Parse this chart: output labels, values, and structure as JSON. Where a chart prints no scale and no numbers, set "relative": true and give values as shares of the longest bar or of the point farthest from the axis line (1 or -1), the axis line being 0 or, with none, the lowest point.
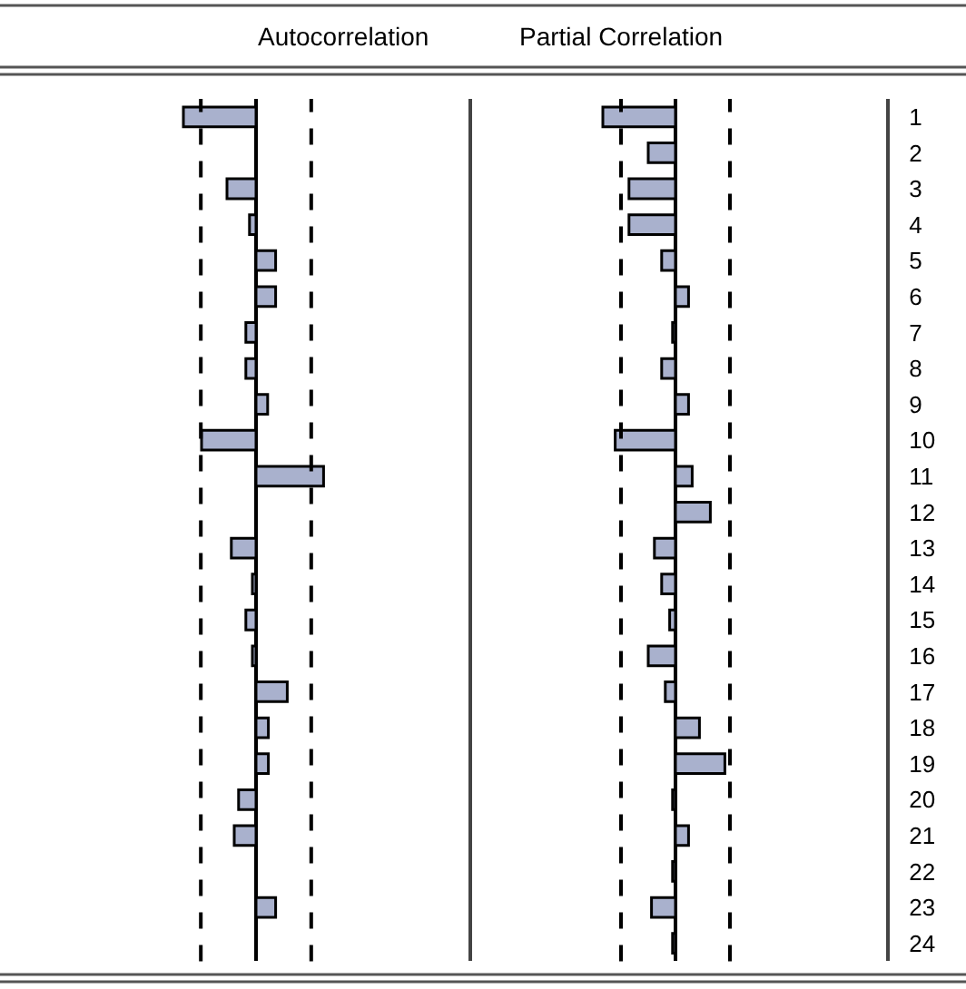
{
  "chart_data": [
    {
      "type": "bar",
      "orientation": "horizontal",
      "relative": true,
      "title": "Autocorrelation",
      "tick_labels": false,
      "color": "#a9b1cd",
      "categories": [
        "1",
        "2",
        "3",
        "4",
        "5",
        "6",
        "7",
        "8",
        "9",
        "10",
        "11",
        "12",
        "13",
        "14",
        "15",
        "16",
        "17",
        "18",
        "19",
        "20",
        "21",
        "22",
        "23",
        "24"
      ],
      "values": [
        -1.0,
        0,
        -0.4,
        -0.09,
        0.27,
        0.27,
        -0.14,
        -0.14,
        0.16,
        -0.75,
        0.93,
        0,
        -0.34,
        -0.05,
        -0.14,
        -0.05,
        0.43,
        0.17,
        0.17,
        -0.24,
        -0.3,
        0,
        0.27,
        0
      ],
      "ref_lines": [
        {
          "axis": "x",
          "value": -0.76,
          "line_style": "dashed",
          "color": "#000000"
        },
        {
          "axis": "x",
          "value": 0.76,
          "line_style": "dashed",
          "color": "#000000"
        }
      ]
    },
    {
      "type": "bar",
      "orientation": "horizontal",
      "relative": true,
      "title": "Partial Correlation",
      "tick_labels": "y",
      "color": "#a9b1cd",
      "categories": [
        "1",
        "2",
        "3",
        "4",
        "5",
        "6",
        "7",
        "8",
        "9",
        "10",
        "11",
        "12",
        "13",
        "14",
        "15",
        "16",
        "17",
        "18",
        "19",
        "20",
        "21",
        "22",
        "23",
        "24"
      ],
      "values": [
        -1.0,
        -0.375,
        -0.64,
        -0.64,
        -0.19,
        0.18,
        -0.04,
        -0.19,
        0.18,
        -0.83,
        0.23,
        0.48,
        -0.29,
        -0.19,
        -0.08,
        -0.375,
        -0.14,
        0.33,
        0.68,
        -0.04,
        0.18,
        -0.04,
        -0.33,
        -0.04
      ],
      "ref_lines": [
        {
          "axis": "x",
          "value": -0.75,
          "line_style": "dashed",
          "color": "#000000"
        },
        {
          "axis": "x",
          "value": 0.75,
          "line_style": "dashed",
          "color": "#000000"
        }
      ]
    }
  ]
}
